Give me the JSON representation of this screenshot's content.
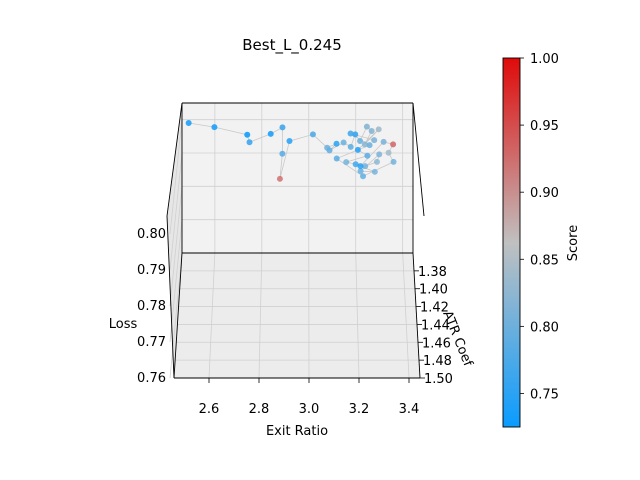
{
  "chart_data": {
    "type": "scatter",
    "projection": "3d",
    "title": "Best_L_0.245",
    "xlabel": "Exit Ratio",
    "ylabel": "ATR Coef",
    "zlabel": "Loss",
    "colorbar_label": "Score",
    "xlim": [
      2.45,
      3.45
    ],
    "ylim": [
      1.36,
      1.5
    ],
    "zlim": [
      0.76,
      0.805
    ],
    "xticks": [
      "2.6",
      "2.8",
      "3.0",
      "3.2",
      "3.4"
    ],
    "yticks": [
      "1.38",
      "1.40",
      "1.42",
      "1.44",
      "1.46",
      "1.48",
      "1.50"
    ],
    "zticks": [
      "0.76",
      "0.77",
      "0.78",
      "0.79",
      "0.80"
    ],
    "colorbar_ticks": [
      "0.75",
      "0.80",
      "0.85",
      "0.90",
      "0.95",
      "1.00"
    ],
    "colorbar_range": [
      0.725,
      1.0
    ],
    "colormap": [
      "#0a9cff",
      "#c0c0c0",
      "#e00a0a"
    ],
    "grid": true,
    "connecting_line_color": "#c8c8c8",
    "points": [
      {
        "x": 2.49,
        "y": 1.376,
        "z": 0.8029,
        "score": 0.74
      },
      {
        "x": 2.6,
        "y": 1.377,
        "z": 0.8019,
        "score": 0.74
      },
      {
        "x": 2.74,
        "y": 1.378,
        "z": 0.7999,
        "score": 0.73
      },
      {
        "x": 2.75,
        "y": 1.381,
        "z": 0.7984,
        "score": 0.76
      },
      {
        "x": 2.84,
        "y": 1.377,
        "z": 0.7999,
        "score": 0.74
      },
      {
        "x": 2.89,
        "y": 1.374,
        "z": 0.8011,
        "score": 0.77
      },
      {
        "x": 2.89,
        "y": 1.388,
        "z": 0.7967,
        "score": 0.78
      },
      {
        "x": 2.88,
        "y": 1.397,
        "z": 0.7915,
        "score": 0.93
      },
      {
        "x": 2.92,
        "y": 1.38,
        "z": 0.7985,
        "score": 0.75
      },
      {
        "x": 3.02,
        "y": 1.376,
        "z": 0.7995,
        "score": 0.78
      },
      {
        "x": 3.08,
        "y": 1.384,
        "z": 0.7975,
        "score": 0.8
      },
      {
        "x": 3.12,
        "y": 1.382,
        "z": 0.7982,
        "score": 0.75
      },
      {
        "x": 3.09,
        "y": 1.386,
        "z": 0.7972,
        "score": 0.79
      },
      {
        "x": 3.15,
        "y": 1.383,
        "z": 0.7988,
        "score": 0.8
      },
      {
        "x": 3.18,
        "y": 1.385,
        "z": 0.798,
        "score": 0.79
      },
      {
        "x": 3.2,
        "y": 1.378,
        "z": 0.8,
        "score": 0.76
      },
      {
        "x": 3.22,
        "y": 1.382,
        "z": 0.799,
        "score": 0.8
      },
      {
        "x": 3.25,
        "y": 1.376,
        "z": 0.8018,
        "score": 0.82
      },
      {
        "x": 3.27,
        "y": 1.378,
        "z": 0.801,
        "score": 0.82
      },
      {
        "x": 3.24,
        "y": 1.384,
        "z": 0.7985,
        "score": 0.82
      },
      {
        "x": 3.3,
        "y": 1.378,
        "z": 0.8015,
        "score": 0.84
      },
      {
        "x": 3.21,
        "y": 1.387,
        "z": 0.7976,
        "score": 0.74
      },
      {
        "x": 3.25,
        "y": 1.39,
        "z": 0.7966,
        "score": 0.78
      },
      {
        "x": 3.16,
        "y": 1.392,
        "z": 0.7952,
        "score": 0.8
      },
      {
        "x": 3.24,
        "y": 1.394,
        "z": 0.7945,
        "score": 0.8
      },
      {
        "x": 3.29,
        "y": 1.393,
        "z": 0.7955,
        "score": 0.82
      },
      {
        "x": 3.3,
        "y": 1.39,
        "z": 0.797,
        "score": 0.81
      },
      {
        "x": 3.22,
        "y": 1.398,
        "z": 0.794,
        "score": 0.79
      },
      {
        "x": 3.28,
        "y": 1.398,
        "z": 0.7938,
        "score": 0.8
      },
      {
        "x": 3.2,
        "y": 1.393,
        "z": 0.7948,
        "score": 0.76
      },
      {
        "x": 3.22,
        "y": 1.394,
        "z": 0.7945,
        "score": 0.74
      },
      {
        "x": 3.32,
        "y": 1.383,
        "z": 0.799,
        "score": 0.81
      },
      {
        "x": 3.36,
        "y": 1.384,
        "z": 0.7985,
        "score": 0.93
      },
      {
        "x": 3.34,
        "y": 1.388,
        "z": 0.797,
        "score": 0.84
      },
      {
        "x": 3.36,
        "y": 1.393,
        "z": 0.7955,
        "score": 0.8
      },
      {
        "x": 3.23,
        "y": 1.4,
        "z": 0.793,
        "score": 0.78
      },
      {
        "x": 3.12,
        "y": 1.391,
        "z": 0.796,
        "score": 0.78
      },
      {
        "x": 3.26,
        "y": 1.385,
        "z": 0.7985,
        "score": 0.8
      },
      {
        "x": 3.18,
        "y": 1.379,
        "z": 0.8005,
        "score": 0.77
      },
      {
        "x": 3.28,
        "y": 1.383,
        "z": 0.7995,
        "score": 0.81
      }
    ]
  }
}
